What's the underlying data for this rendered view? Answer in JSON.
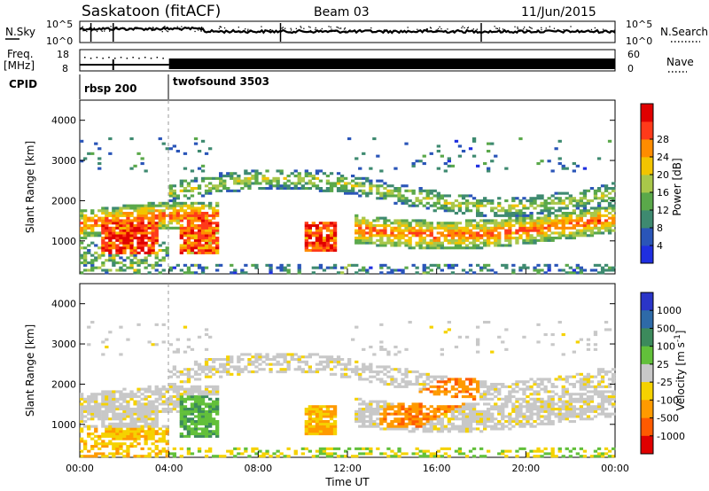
{
  "header": {
    "title": "Saskatoon (fitACF)",
    "beam": "Beam 03",
    "date": "11/Jun/2015"
  },
  "top_panels": {
    "nsky_label": "N.Sky",
    "nsky_ticks": [
      "10^5",
      "10^0"
    ],
    "nsearch_label": "N.Search",
    "nsearch_ticks": [
      "10^5",
      "10^0"
    ],
    "freq_label_1": "Freq.",
    "freq_label_2": "[MHz]",
    "freq_ticks": [
      "18",
      "8"
    ],
    "nave_label": "Nave",
    "nave_ticks": [
      "60",
      "0"
    ],
    "cpid_label": "CPID",
    "cpid_blocks": [
      {
        "name": "rbsp 200",
        "start_hour": 0,
        "end_hour": 4
      },
      {
        "name": "twofsound 3503",
        "start_hour": 4,
        "end_hour": 24
      }
    ]
  },
  "chart_data": [
    {
      "type": "heatmap",
      "title": "",
      "ylabel": "Slant Range [km]",
      "xlabel": "",
      "xlim": [
        0,
        24
      ],
      "ylim": [
        180,
        4500
      ],
      "yticks": [
        "1000",
        "2000",
        "3000",
        "4000"
      ],
      "colorbar": {
        "label": "Power [dB]",
        "ticks": [
          "4",
          "8",
          "12",
          "16",
          "20",
          "24",
          "28"
        ],
        "range": [
          0,
          30
        ],
        "colors": [
          "#1f2fe0",
          "#2a55b8",
          "#3e8a70",
          "#5aa84a",
          "#a9c74a",
          "#f2c400",
          "#ff8c00",
          "#ff3a1a",
          "#e00000"
        ]
      }
    },
    {
      "type": "heatmap",
      "title": "",
      "ylabel": "Slant Range [km]",
      "xlabel": "Time UT",
      "xlim": [
        0,
        24
      ],
      "ylim": [
        180,
        4500
      ],
      "yticks": [
        "1000",
        "2000",
        "3000",
        "4000"
      ],
      "xticks": [
        "00:00",
        "04:00",
        "08:00",
        "12:00",
        "16:00",
        "20:00",
        "00:00"
      ],
      "colorbar": {
        "label": "Velocity [m s",
        "label_superscript": "-1",
        "label_end": "]",
        "ticks": [
          "1000",
          "500",
          "100",
          "25",
          "-25",
          "-100",
          "-500",
          "-1000"
        ],
        "colors": [
          "#2a35c8",
          "#2e6aa8",
          "#3c8a5c",
          "#62c03a",
          "#c8c8c8",
          "#f5d200",
          "#ff9a00",
          "#ff5a00",
          "#e00000"
        ]
      }
    }
  ]
}
